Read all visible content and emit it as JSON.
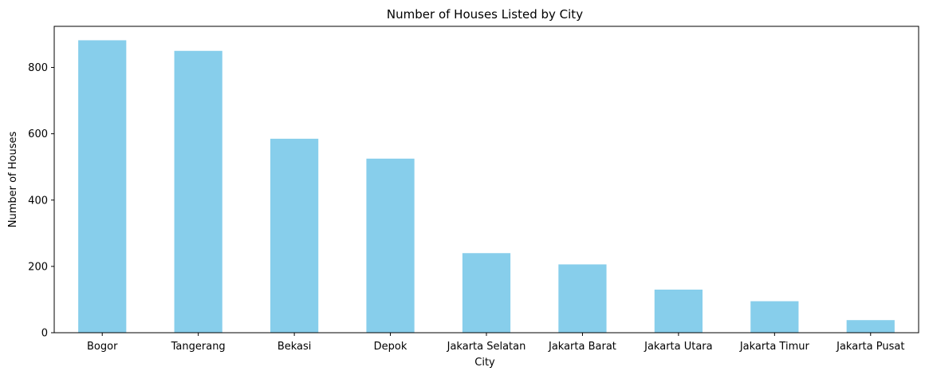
{
  "chart_data": {
    "type": "bar",
    "title": "Number of Houses Listed by City",
    "xlabel": "City",
    "ylabel": "Number of Houses",
    "categories": [
      "Bogor",
      "Tangerang",
      "Bekasi",
      "Depok",
      "Jakarta Selatan",
      "Jakarta Barat",
      "Jakarta Utara",
      "Jakarta Timur",
      "Jakarta Pusat"
    ],
    "values": [
      882,
      850,
      585,
      525,
      240,
      206,
      130,
      95,
      38
    ],
    "ylim": [
      0,
      924
    ],
    "yticks": [
      0,
      200,
      400,
      600,
      800
    ],
    "grid": false,
    "colors": {
      "bar": "#87CEEB",
      "axis": "#000000",
      "background": "#ffffff"
    }
  }
}
